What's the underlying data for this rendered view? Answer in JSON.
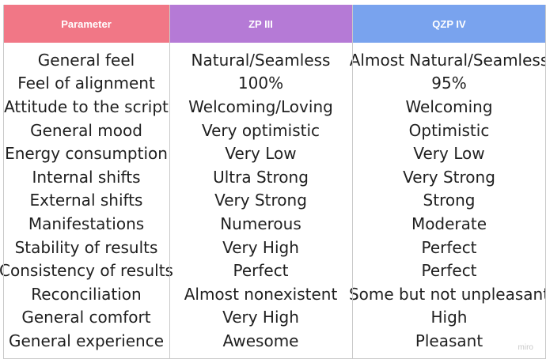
{
  "header": {
    "col1": "Parameter",
    "col2": "ZP III",
    "col3": "QZP IV",
    "colors": {
      "col1": "#f17786",
      "col2": "#b57ad6",
      "col3": "#79a3ee"
    }
  },
  "rows": [
    {
      "param": "General feel",
      "zp3": "Natural/Seamless",
      "qzp4": "Almost Natural/Seamless"
    },
    {
      "param": "Feel of alignment",
      "zp3": "100%",
      "qzp4": "95%"
    },
    {
      "param": "Attitude to the script",
      "zp3": "Welcoming/Loving",
      "qzp4": "Welcoming"
    },
    {
      "param": "General mood",
      "zp3": "Very optimistic",
      "qzp4": "Optimistic"
    },
    {
      "param": "Energy consumption",
      "zp3": "Very Low",
      "qzp4": "Very Low"
    },
    {
      "param": "Internal shifts",
      "zp3": "Ultra Strong",
      "qzp4": "Very Strong"
    },
    {
      "param": "External shifts",
      "zp3": "Very Strong",
      "qzp4": "Strong"
    },
    {
      "param": "Manifestations",
      "zp3": "Numerous",
      "qzp4": "Moderate"
    },
    {
      "param": "Stability of results",
      "zp3": "Very High",
      "qzp4": "Perfect"
    },
    {
      "param": "Consistency of results",
      "zp3": "Perfect",
      "qzp4": "Perfect"
    },
    {
      "param": "Reconciliation",
      "zp3": "Almost nonexistent",
      "qzp4": "Some but not unpleasant"
    },
    {
      "param": "General comfort",
      "zp3": "Very High",
      "qzp4": "High"
    },
    {
      "param": "General experience",
      "zp3": "Awesome",
      "qzp4": "Pleasant"
    }
  ],
  "watermark": "miro"
}
